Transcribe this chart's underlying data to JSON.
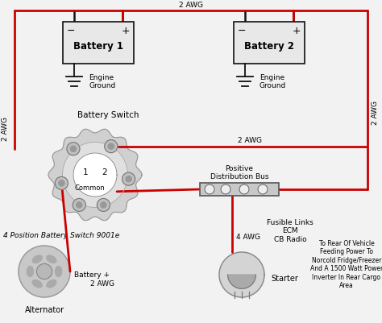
{
  "bg_color": "#f2f2f2",
  "wire_red": "#cc0000",
  "wire_black": "#111111",
  "bat1_label": "Battery 1",
  "bat2_label": "Battery 2",
  "switch_label": "Battery Switch",
  "common_label": "Common",
  "switch_part": "4 Position Battery Switch 9001e",
  "bus_label": "Positive\nDistribution Bus",
  "alt_label": "Alternator",
  "starter_label": "Starter",
  "eng_gnd1": "Engine\nGround",
  "eng_gnd2": "Engine\nGround",
  "bat_plus": "Battery +",
  "fusible": "Fusible Links\nECM\nCB Radio",
  "rear_text": "To Rear Of Vehicle\nFeeding Power To\nNorcold Fridge/Freezer\nAnd A 1500 Watt Power\nInverter In Rear Cargo\nArea",
  "lbl_2awg_left": "2 AWG",
  "lbl_2awg_top": "2 AWG",
  "lbl_2awg_right": "2 AWG",
  "lbl_4awg": "4 AWG",
  "lbl_2awg_alt": "2 AWG",
  "lbl_2awg_mid": "2 AWG",
  "figw": 4.74,
  "figh": 4.02,
  "dpi": 100
}
